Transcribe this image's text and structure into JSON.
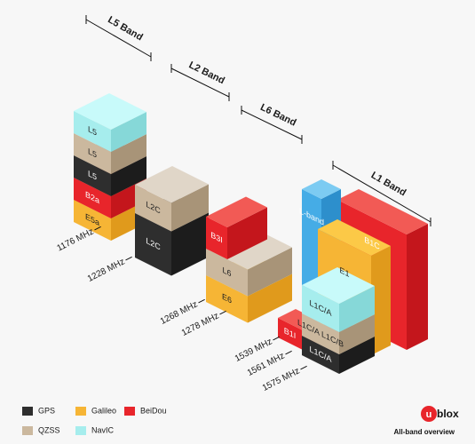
{
  "bands": [
    {
      "label": "L5 Band"
    },
    {
      "label": "L2 Band"
    },
    {
      "label": "L6 Band"
    },
    {
      "label": "L1 Band"
    }
  ],
  "frequencies": [
    "1176 MHz",
    "1228 MHz",
    "1268 MHz",
    "1278 MHz",
    "1539 MHz",
    "1561 MHz",
    "1575 MHz"
  ],
  "blocks": [
    {
      "label": "E5a"
    },
    {
      "label": "B2a"
    },
    {
      "label": "L5"
    },
    {
      "label": "L5"
    },
    {
      "label": "L5"
    },
    {
      "label": "L2C"
    },
    {
      "label": "L2C"
    },
    {
      "label": "E6"
    },
    {
      "label": "L6"
    },
    {
      "label": "B3I"
    },
    {
      "label": "B1C"
    },
    {
      "label": "L-band"
    },
    {
      "label": "E1"
    },
    {
      "label": "B1I"
    },
    {
      "label": "L1C/A"
    },
    {
      "label": "L1C/A L1C/B"
    },
    {
      "label": "L1C/A"
    }
  ],
  "legend": [
    {
      "label": "GPS"
    },
    {
      "label": "Galileo"
    },
    {
      "label": "BeiDou"
    },
    {
      "label": "QZSS"
    },
    {
      "label": "NavIC"
    }
  ],
  "logo": {
    "mark": "u",
    "text": "blox"
  },
  "caption": "All-band overview"
}
